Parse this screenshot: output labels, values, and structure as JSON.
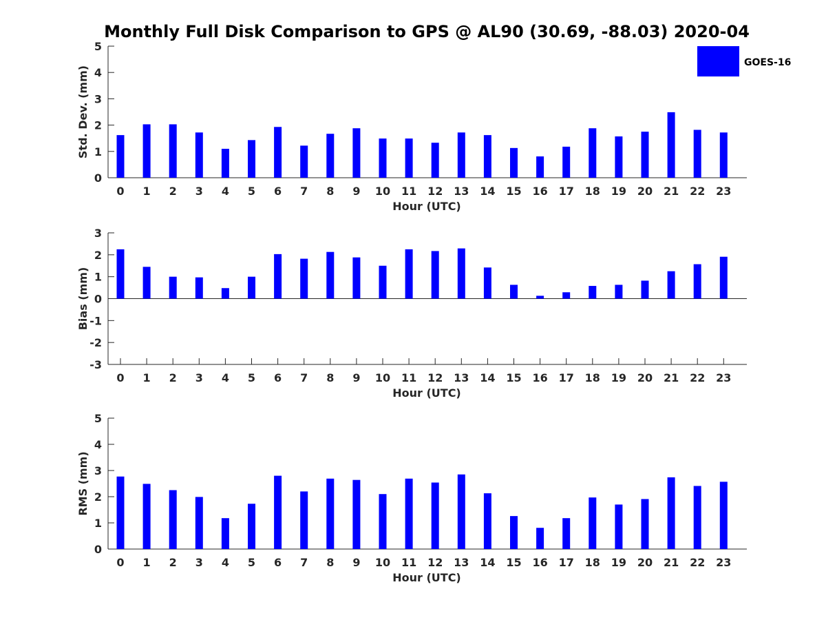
{
  "title": "Monthly Full Disk Comparison to GPS @ AL90 (30.69, -88.03) 2020-04",
  "legend": {
    "label": "GOES-16",
    "color": "#0000ff",
    "placement": "top-right"
  },
  "chart_data": [
    {
      "type": "bar",
      "name": "std",
      "categories": [
        "0",
        "1",
        "2",
        "3",
        "4",
        "5",
        "6",
        "7",
        "8",
        "9",
        "10",
        "11",
        "12",
        "13",
        "14",
        "15",
        "16",
        "17",
        "18",
        "19",
        "20",
        "21",
        "22",
        "23"
      ],
      "series": [
        {
          "name": "GOES-16",
          "values": [
            1.62,
            2.03,
            2.03,
            1.72,
            1.1,
            1.43,
            1.93,
            1.22,
            1.67,
            1.88,
            1.49,
            1.49,
            1.33,
            1.72,
            1.62,
            1.13,
            0.81,
            1.18,
            1.88,
            1.57,
            1.75,
            2.49,
            1.82,
            1.72
          ]
        }
      ],
      "xlabel": "Hour (UTC)",
      "ylabel": "Std. Dev. (mm)",
      "ylim": [
        0,
        5
      ],
      "yticks": [
        0,
        1,
        2,
        3,
        4,
        5
      ],
      "grid": false
    },
    {
      "type": "bar",
      "name": "bias",
      "categories": [
        "0",
        "1",
        "2",
        "3",
        "4",
        "5",
        "6",
        "7",
        "8",
        "9",
        "10",
        "11",
        "12",
        "13",
        "14",
        "15",
        "16",
        "17",
        "18",
        "19",
        "20",
        "21",
        "22",
        "23"
      ],
      "series": [
        {
          "name": "GOES-16",
          "values": [
            2.25,
            1.45,
            1.0,
            0.97,
            0.48,
            1.0,
            2.03,
            1.82,
            2.13,
            1.88,
            1.5,
            2.25,
            2.17,
            2.29,
            1.42,
            0.63,
            0.13,
            0.29,
            0.58,
            0.63,
            0.82,
            1.25,
            1.57,
            1.91
          ]
        }
      ],
      "xlabel": "Hour (UTC)",
      "ylabel": "Bias (mm)",
      "ylim": [
        -3,
        3
      ],
      "yticks": [
        -3,
        -2,
        -1,
        0,
        1,
        2,
        3
      ],
      "grid": false
    },
    {
      "type": "bar",
      "name": "rms",
      "categories": [
        "0",
        "1",
        "2",
        "3",
        "4",
        "5",
        "6",
        "7",
        "8",
        "9",
        "10",
        "11",
        "12",
        "13",
        "14",
        "15",
        "16",
        "17",
        "18",
        "19",
        "20",
        "21",
        "22",
        "23"
      ],
      "series": [
        {
          "name": "GOES-16",
          "values": [
            2.77,
            2.49,
            2.25,
            1.99,
            1.18,
            1.73,
            2.8,
            2.2,
            2.69,
            2.64,
            2.1,
            2.69,
            2.54,
            2.85,
            2.13,
            1.26,
            0.81,
            1.18,
            1.97,
            1.7,
            1.91,
            2.74,
            2.41,
            2.57
          ]
        }
      ],
      "xlabel": "Hour (UTC)",
      "ylabel": "RMS (mm)",
      "ylim": [
        0,
        5
      ],
      "yticks": [
        0,
        1,
        2,
        3,
        4,
        5
      ],
      "grid": false
    }
  ]
}
